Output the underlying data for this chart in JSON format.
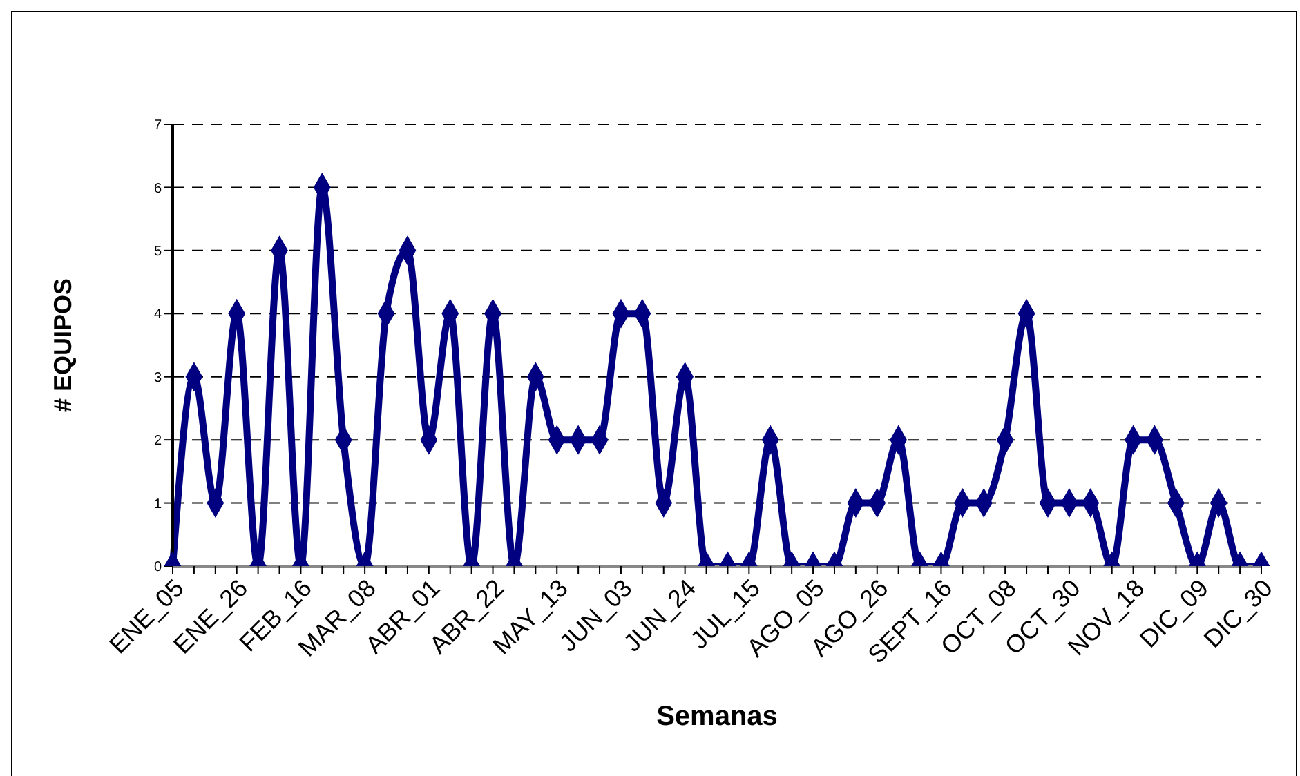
{
  "chart_data": {
    "type": "line",
    "xlabel": "Semanas",
    "ylabel": "# EQUIPOS",
    "categories": [
      "ENE_05",
      null,
      null,
      "ENE_26",
      null,
      null,
      "FEB_16",
      null,
      null,
      "MAR_08",
      null,
      null,
      "ABR_01",
      null,
      null,
      "ABR_22",
      null,
      null,
      "MAY_13",
      null,
      null,
      "JUN_03",
      null,
      null,
      "JUN_24",
      null,
      null,
      "JUL_15",
      null,
      null,
      "AGO_05",
      null,
      null,
      "AGO_26",
      null,
      null,
      "SEPT_16",
      null,
      null,
      "OCT_08",
      null,
      null,
      "OCT_30",
      null,
      null,
      "NOV_18",
      null,
      null,
      "DIC_09",
      null,
      null,
      "DIC_30"
    ],
    "series": [
      {
        "color": "#000080",
        "values": [
          0,
          3,
          1,
          4,
          0,
          5,
          0,
          6,
          2,
          0,
          4,
          5,
          2,
          4,
          0,
          4,
          0,
          3,
          2,
          2,
          2,
          4,
          4,
          1,
          3,
          0,
          0,
          0,
          2,
          0,
          0,
          0,
          1,
          1,
          2,
          0,
          0,
          1,
          1,
          2,
          4,
          1,
          1,
          1,
          0,
          2,
          2,
          1,
          0,
          1,
          0,
          0
        ]
      }
    ],
    "ylim": [
      0,
      7
    ],
    "yticks": [
      0,
      1,
      2,
      3,
      4,
      5,
      6,
      7
    ],
    "grid": "y",
    "marker": "diamond",
    "line_style": "solid",
    "legend": false
  }
}
